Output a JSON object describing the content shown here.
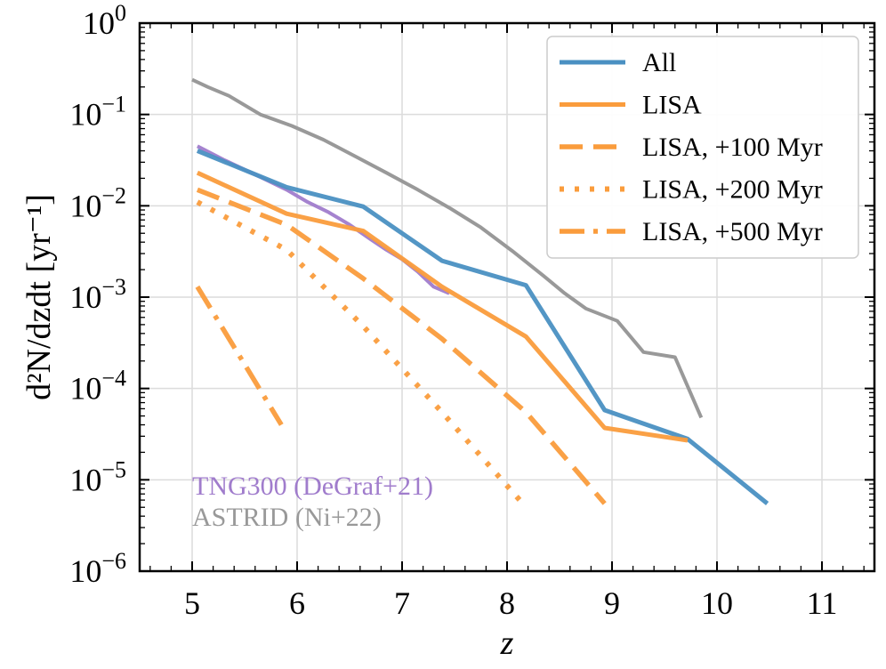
{
  "chart_data": {
    "type": "line",
    "xlabel": "z",
    "ylabel": "d²N/dzdt [yr⁻¹]",
    "xlim": [
      4.5,
      11.5
    ],
    "ylim_exp": [
      -6,
      0
    ],
    "yscale": "log",
    "xticks": [
      5,
      6,
      7,
      8,
      9,
      10,
      11
    ],
    "yticks": [
      {
        "exp": 0,
        "label": "10",
        "sup": "0"
      },
      {
        "exp": -1,
        "label": "10",
        "sup": "−1"
      },
      {
        "exp": -2,
        "label": "10",
        "sup": "−2"
      },
      {
        "exp": -3,
        "label": "10",
        "sup": "−3"
      },
      {
        "exp": -4,
        "label": "10",
        "sup": "−4"
      },
      {
        "exp": -5,
        "label": "10",
        "sup": "−5"
      },
      {
        "exp": -6,
        "label": "10",
        "sup": "−6"
      }
    ],
    "grid": true,
    "legend_position": "top-right",
    "series": [
      {
        "name": "All",
        "color": "#4a90c2",
        "dash": "solid",
        "legend": true,
        "x": [
          5.05,
          5.9,
          6.63,
          7.38,
          8.18,
          8.93,
          9.72,
          10.48
        ],
        "y": [
          0.04,
          0.016,
          0.0098,
          0.0025,
          0.00135,
          5.8e-05,
          2.8e-05,
          5.5e-06
        ]
      },
      {
        "name": "LISA",
        "color": "#fa9c3c",
        "dash": "solid",
        "legend": true,
        "x": [
          5.05,
          5.9,
          6.63,
          7.38,
          8.18,
          8.93,
          9.72
        ],
        "y": [
          0.023,
          0.0082,
          0.0053,
          0.0013,
          0.00037,
          3.7e-05,
          2.7e-05
        ]
      },
      {
        "name": "LISA, +100 Myr",
        "color": "#fa9c3c",
        "dash": "dashed",
        "legend": true,
        "x": [
          5.05,
          5.9,
          6.63,
          7.38,
          8.18,
          8.93
        ],
        "y": [
          0.015,
          0.0062,
          0.0016,
          0.00035,
          5.5e-05,
          5.5e-06
        ]
      },
      {
        "name": "LISA, +200 Myr",
        "color": "#fa9c3c",
        "dash": "dotted",
        "legend": true,
        "x": [
          5.05,
          5.9,
          6.63,
          7.38,
          8.15
        ],
        "y": [
          0.011,
          0.0033,
          0.00048,
          5.5e-05,
          5.5e-06
        ]
      },
      {
        "name": "LISA, +500 Myr",
        "color": "#fa9c3c",
        "dash": "dashdot",
        "legend": true,
        "x": [
          5.05,
          5.85
        ],
        "y": [
          0.0013,
          4e-05
        ]
      },
      {
        "name": "TNG300 (DeGraf+21)",
        "color": "#a07ccc",
        "dash": "solid",
        "legend": false,
        "x": [
          5.05,
          5.3,
          5.6,
          5.9,
          6.1,
          6.3,
          6.5,
          6.7,
          6.85,
          7.0,
          7.15,
          7.3,
          7.45
        ],
        "y": [
          0.045,
          0.032,
          0.022,
          0.015,
          0.011,
          0.0085,
          0.0062,
          0.0043,
          0.0033,
          0.0026,
          0.0019,
          0.0013,
          0.0011
        ]
      },
      {
        "name": "ASTRID (Ni+22)",
        "color": "#999999",
        "dash": "solid",
        "legend": false,
        "x": [
          5.0,
          5.15,
          5.35,
          5.65,
          5.95,
          6.25,
          6.55,
          6.85,
          7.15,
          7.45,
          7.75,
          8.05,
          8.35,
          8.55,
          8.75,
          9.05,
          9.3,
          9.6,
          9.85
        ],
        "y": [
          0.24,
          0.2,
          0.16,
          0.1,
          0.075,
          0.053,
          0.035,
          0.023,
          0.015,
          0.0095,
          0.0058,
          0.0032,
          0.0017,
          0.0011,
          0.00075,
          0.00055,
          0.00025,
          0.00022,
          4.8e-05
        ]
      }
    ],
    "annotations": [
      {
        "text": "TNG300 (DeGraf+21)",
        "color": "#a07ccc"
      },
      {
        "text": "ASTRID (Ni+22)",
        "color": "#999999"
      }
    ]
  }
}
